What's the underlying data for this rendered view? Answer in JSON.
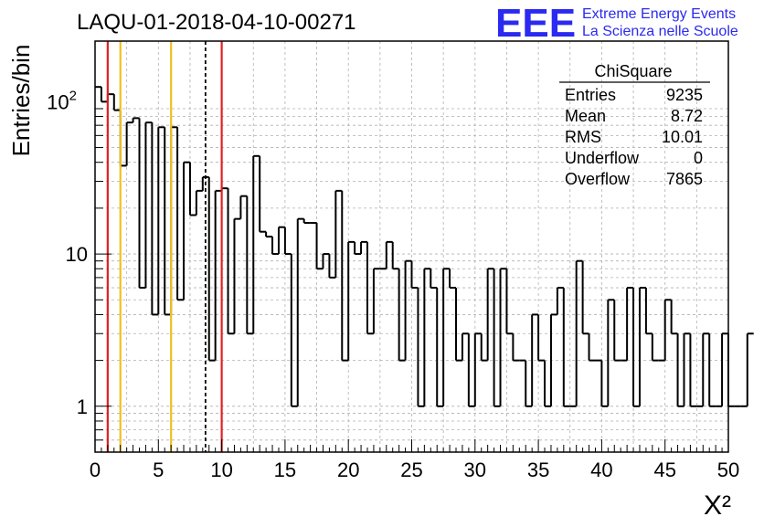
{
  "chart_data": {
    "type": "histogram",
    "title": "LAQU-01-2018-04-10-00271",
    "xlabel": "X²",
    "ylabel": "Entries/bin",
    "xlim": [
      0,
      50
    ],
    "ylim": [
      0.5,
      250
    ],
    "yscale": "log",
    "grid": true,
    "bin_width": 0.5,
    "x_ticks": [
      "0",
      "5",
      "10",
      "15",
      "20",
      "25",
      "30",
      "35",
      "40",
      "45",
      "50"
    ],
    "y_ticks": [
      {
        "value": 1,
        "label": "1"
      },
      {
        "value": 10,
        "label": "10"
      },
      {
        "value": 100,
        "label": "10",
        "exp": "2"
      }
    ],
    "values": [
      125,
      100,
      112,
      88,
      38,
      73,
      78,
      6,
      73,
      4,
      68,
      4,
      68,
      5,
      40,
      18,
      26,
      32,
      2,
      26,
      27,
      3,
      17,
      24,
      3,
      44,
      14,
      13,
      10,
      15,
      10,
      1,
      17,
      16,
      16,
      8,
      10,
      7,
      26,
      2,
      12,
      10,
      12,
      3,
      8,
      8,
      12,
      8,
      2,
      9,
      6,
      1,
      8,
      6,
      1,
      8,
      6,
      2,
      3,
      1,
      3,
      2,
      8,
      1,
      8,
      3,
      2,
      2,
      1,
      4,
      2,
      1,
      4,
      6,
      1,
      1,
      9,
      3,
      2,
      2,
      1,
      5,
      2,
      2,
      6,
      1,
      6,
      3,
      2,
      2,
      5,
      3,
      1,
      3,
      1,
      1,
      3,
      1,
      1,
      3,
      1,
      1,
      1,
      3
    ],
    "vertical_lines": [
      {
        "x": 1,
        "color": "#e02020",
        "style": "solid"
      },
      {
        "x": 2,
        "color": "#f0c020",
        "style": "solid"
      },
      {
        "x": 6,
        "color": "#f0c020",
        "style": "solid"
      },
      {
        "x": 8.72,
        "color": "#000000",
        "style": "dashed"
      },
      {
        "x": 10,
        "color": "#e02020",
        "style": "solid"
      }
    ],
    "stats_box": {
      "title": "ChiSquare",
      "rows": [
        {
          "label": "Entries",
          "value": "9235"
        },
        {
          "label": "Mean",
          "value": "8.72"
        },
        {
          "label": "RMS",
          "value": "10.01"
        },
        {
          "label": "Underflow",
          "value": "0"
        },
        {
          "label": "Overflow",
          "value": "7865"
        }
      ]
    }
  },
  "logo": {
    "mark": "EEE",
    "line1": "Extreme Energy Events",
    "line2": "La Scienza nelle Scuole",
    "color": "#2a2af0"
  }
}
